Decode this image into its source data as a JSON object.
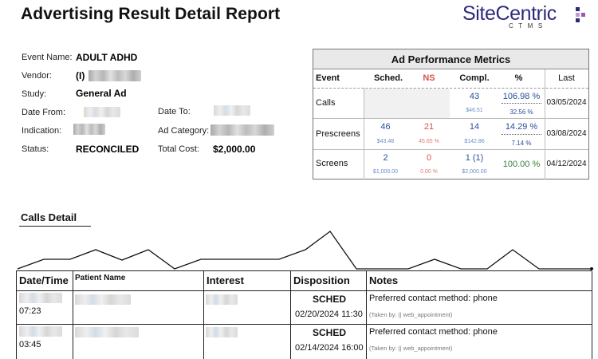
{
  "report": {
    "title": "Advertising Result Detail Report",
    "logo_main": "SiteCentric",
    "logo_sub": "CTMS",
    "logo_colors": [
      "#2e2a7a",
      "#9b59b6",
      "#2e2a7a",
      "#c39bd3"
    ]
  },
  "event_info": {
    "event_name_label": "Event Name:",
    "event_name": "ADULT ADHD",
    "vendor_label": "Vendor:",
    "vendor_prefix": "(I)",
    "study_label": "Study:",
    "study": "General Ad",
    "date_from_label": "Date From:",
    "date_to_label": "Date To:",
    "indication_label": "Indication:",
    "ad_category_label": "Ad Category:",
    "status_label": "Status:",
    "status": "RECONCILED",
    "total_cost_label": "Total Cost:",
    "total_cost": "$2,000.00"
  },
  "metrics": {
    "title": "Ad Performance Metrics",
    "headers": {
      "event": "Event",
      "sched": "Sched.",
      "ns": "NS",
      "compl": "Compl.",
      "pct": "%",
      "last": "Last"
    },
    "ns_color": "#d9534f",
    "rows": {
      "calls": {
        "event": "Calls",
        "compl": "43",
        "compl_sub": "$46.51",
        "pct": "106.98 %",
        "pct_sub": "32.56 %",
        "last": "03/05/2024"
      },
      "prescreens": {
        "event": "Prescreens",
        "sched": "46",
        "sched_sub": "$43.48",
        "ns": "21",
        "ns_sub": "45.65 %",
        "compl": "14",
        "compl_sub": "$142.86",
        "pct": "14.29 %",
        "pct_sub": "7.14 %",
        "last": "03/08/2024"
      },
      "screens": {
        "event": "Screens",
        "sched": "2",
        "sched_sub": "$1,000.00",
        "ns": "0",
        "ns_sub": "0.00 %",
        "compl": "1 (1)",
        "compl_sub": "$2,000.00",
        "pct": "100.00 %",
        "last": "04/12/2024"
      }
    }
  },
  "calls_detail": {
    "title": "Calls Detail",
    "headers": {
      "datetime": "Date/Time",
      "patient": "Patient Name",
      "interest": "Interest",
      "disposition": "Disposition",
      "notes": "Notes"
    },
    "rows": [
      {
        "time": "07:23",
        "disposition": "SCHED",
        "disp_date": "02/20/2024 11:30",
        "notes": "Preferred contact method: phone",
        "taken_by": "(Taken by: || web_appointment)"
      },
      {
        "time": "03:45",
        "disposition": "SCHED",
        "disp_date": "02/14/2024 16:00",
        "notes": "Preferred contact method: phone",
        "taken_by": "(Taken by: || web_appointment)"
      }
    ]
  }
}
